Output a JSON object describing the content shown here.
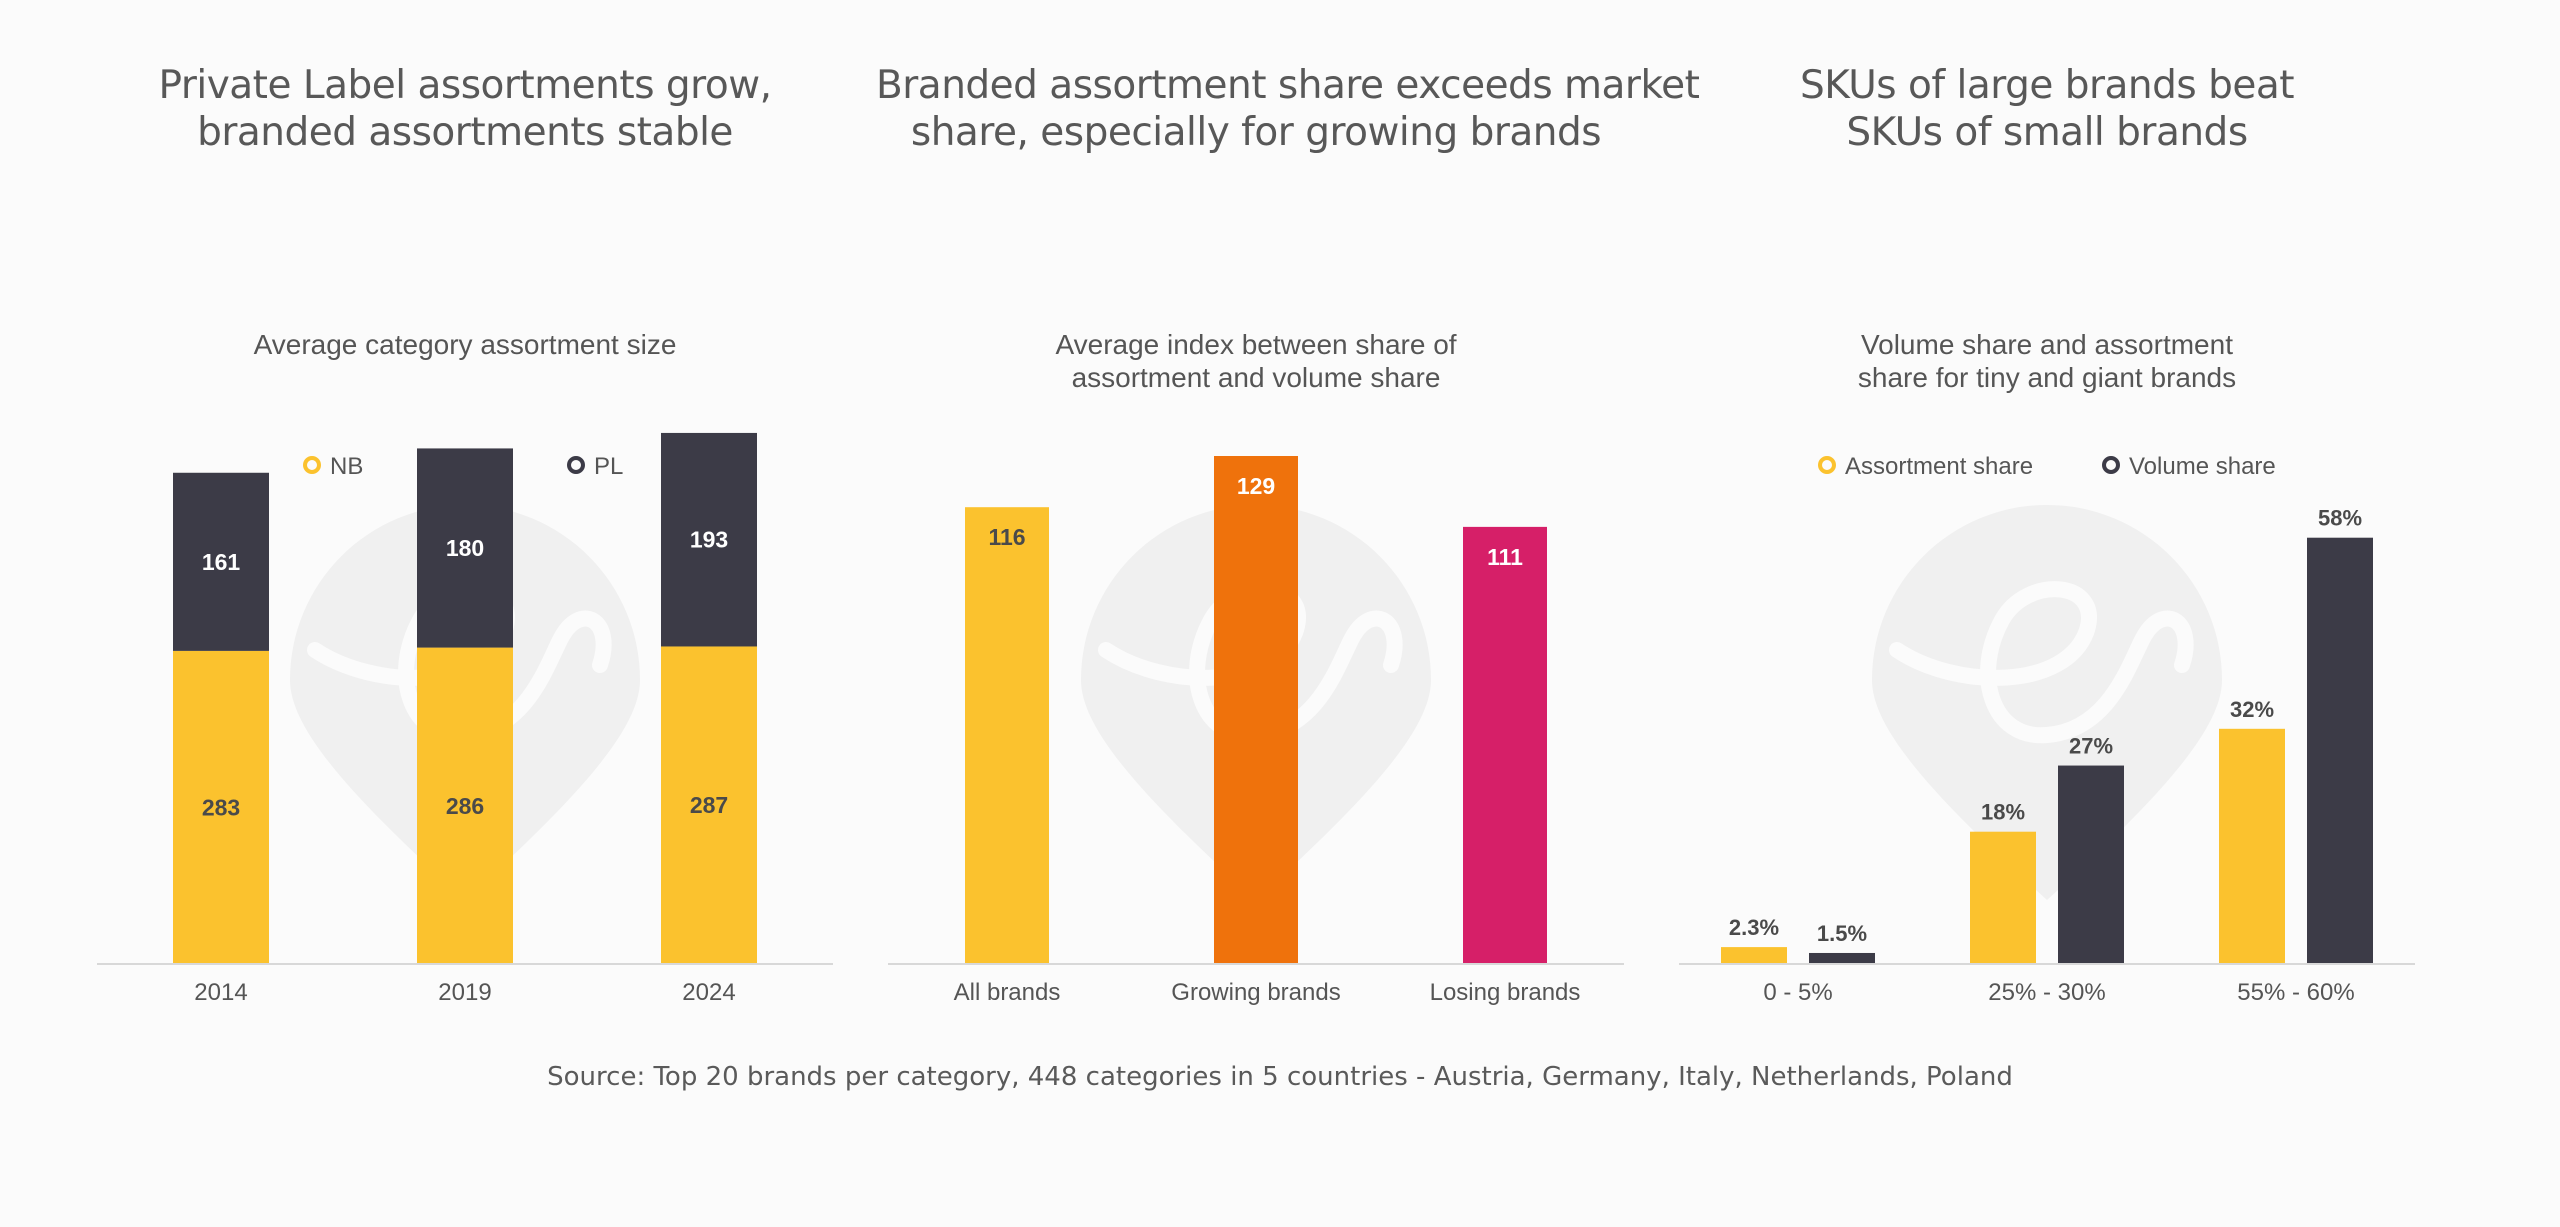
{
  "colors": {
    "nb": "#fbc22e",
    "pl": "#3c3b47",
    "all": "#fbc22e",
    "growing": "#ef720c",
    "losing": "#d61f68",
    "watermark": "#f0f0f0",
    "axis": "#d8d8d8"
  },
  "panels": [
    {
      "title_lines": [
        "Private Label assortments grow,",
        "branded assortments stable"
      ],
      "subtitle_lines": [
        "Average category assortment size"
      ]
    },
    {
      "title_lines": [
        "Branded assortment share exceeds market",
        "share, especially for growing brands"
      ],
      "subtitle_lines": [
        "Average index between share of",
        "assortment and volume share"
      ]
    },
    {
      "title_lines": [
        "SKUs of large brands beat",
        "SKUs of small brands"
      ],
      "subtitle_lines": [
        "Volume share and assortment",
        "share for tiny and giant brands"
      ]
    }
  ],
  "chart_data": [
    {
      "type": "bar",
      "stacked": true,
      "categories": [
        "2014",
        "2019",
        "2024"
      ],
      "series": [
        {
          "name": "NB",
          "values": [
            283,
            286,
            287
          ],
          "color": "#fbc22e"
        },
        {
          "name": "PL",
          "values": [
            161,
            180,
            193
          ],
          "color": "#3c3b47"
        }
      ],
      "data_labels": [
        [
          "283",
          "286",
          "287"
        ],
        [
          "161",
          "180",
          "193"
        ]
      ],
      "ylim": [
        0,
        470
      ],
      "legend": "top",
      "grid": false
    },
    {
      "type": "bar",
      "categories": [
        "All brands",
        "Growing brands",
        "Losing brands"
      ],
      "values": [
        116,
        129,
        111
      ],
      "data_labels": [
        "116",
        "129",
        "111"
      ],
      "colors": [
        "#fbc22e",
        "#ef720c",
        "#d61f68"
      ],
      "ylim": [
        0,
        129
      ],
      "grid": false
    },
    {
      "type": "bar",
      "categories": [
        "0 - 5%",
        "25% - 30%",
        "55% - 60%"
      ],
      "series": [
        {
          "name": "Assortment share",
          "values": [
            2.3,
            18,
            32
          ],
          "color": "#fbc22e"
        },
        {
          "name": "Volume share",
          "values": [
            1.5,
            27,
            58
          ],
          "color": "#3c3b47"
        }
      ],
      "data_labels": [
        [
          "2.3%",
          "18%",
          "32%"
        ],
        [
          "1.5%",
          "27%",
          "58%"
        ]
      ],
      "ylim": [
        0,
        60
      ],
      "legend": "top",
      "grid": false
    }
  ],
  "source": "Source: Top 20 brands per category, 448 categories in 5 countries - Austria, Germany, Italy, Netherlands, Poland"
}
